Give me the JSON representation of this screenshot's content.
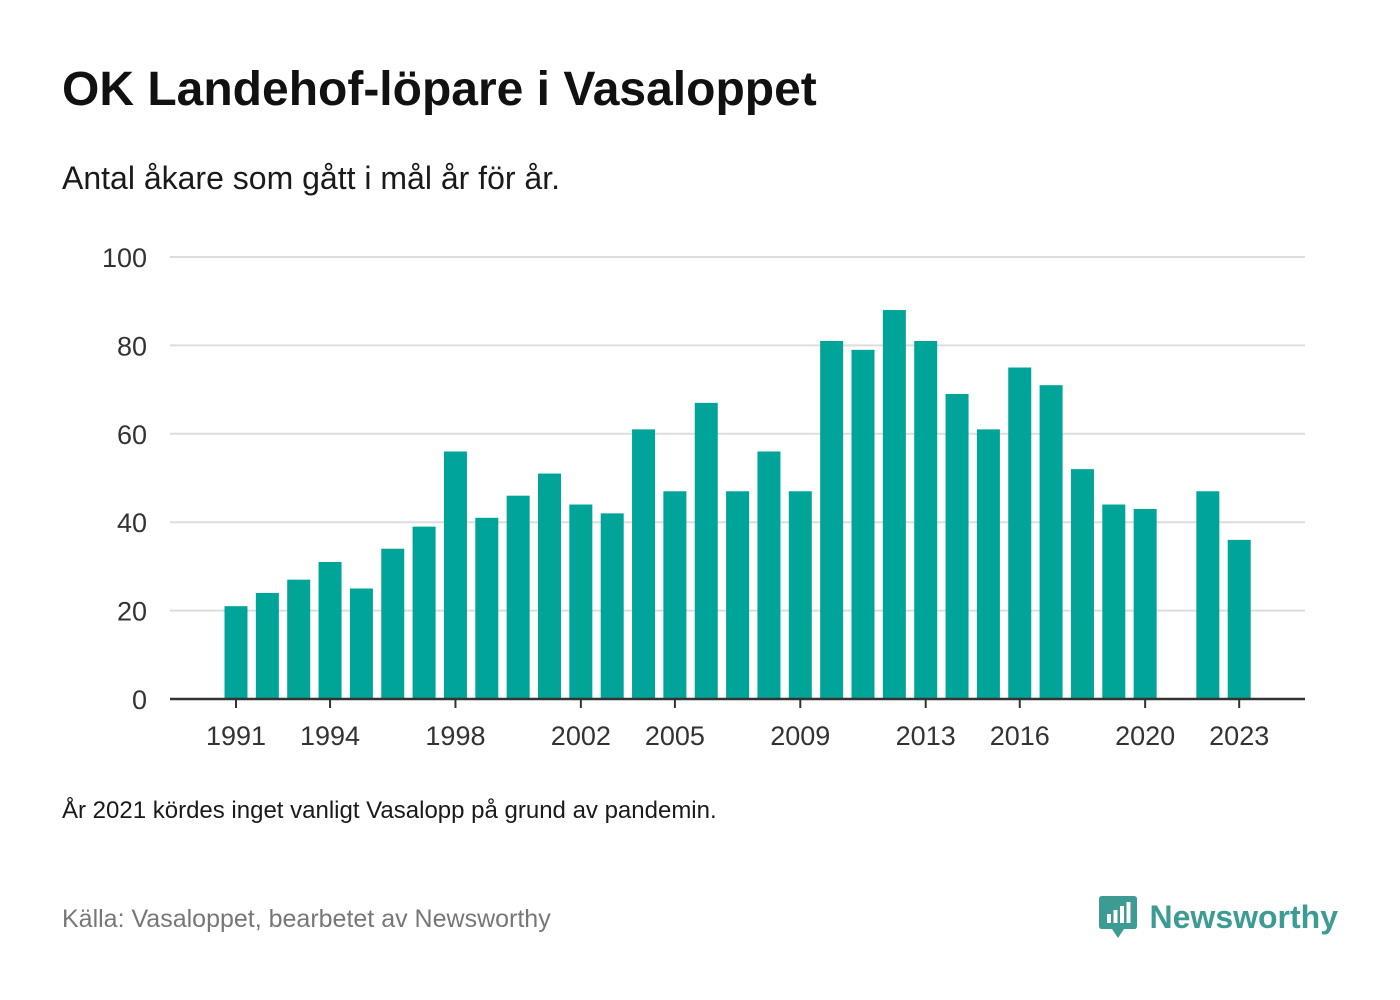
{
  "title": "OK Landehof-löpare i Vasaloppet",
  "subtitle": "Antal åkare som gått i mål år för år.",
  "note": "År 2021 kördes inget vanligt Vasalopp på grund av pandemin.",
  "source": "Källa: Vasaloppet, bearbetet av Newsworthy",
  "brand": {
    "name": "Newsworthy",
    "icon": "newsworthy-logo-icon",
    "color": "#3d9b93"
  },
  "colors": {
    "bar": "#00a499",
    "grid": "#dddddd",
    "axis": "#333333"
  },
  "chart_data": {
    "type": "bar",
    "categories": [
      "1991",
      "1992",
      "1993",
      "1994",
      "1995",
      "1996",
      "1997",
      "1998",
      "1999",
      "2000",
      "2001",
      "2002",
      "2003",
      "2004",
      "2005",
      "2006",
      "2007",
      "2008",
      "2009",
      "2010",
      "2011",
      "2012",
      "2013",
      "2014",
      "2015",
      "2016",
      "2017",
      "2018",
      "2019",
      "2020",
      "2021",
      "2022",
      "2023"
    ],
    "values": [
      21,
      24,
      27,
      31,
      25,
      34,
      39,
      56,
      41,
      46,
      51,
      44,
      42,
      61,
      47,
      67,
      47,
      56,
      47,
      81,
      79,
      88,
      81,
      69,
      61,
      75,
      71,
      52,
      44,
      43,
      null,
      47,
      36
    ],
    "x_tick_labels": [
      "1991",
      "1994",
      "1998",
      "2002",
      "2005",
      "2009",
      "2013",
      "2016",
      "2020",
      "2023"
    ],
    "y_ticks": [
      0,
      20,
      40,
      60,
      80,
      100
    ],
    "ylim": [
      0,
      100
    ],
    "grid": true,
    "legend": "none"
  }
}
